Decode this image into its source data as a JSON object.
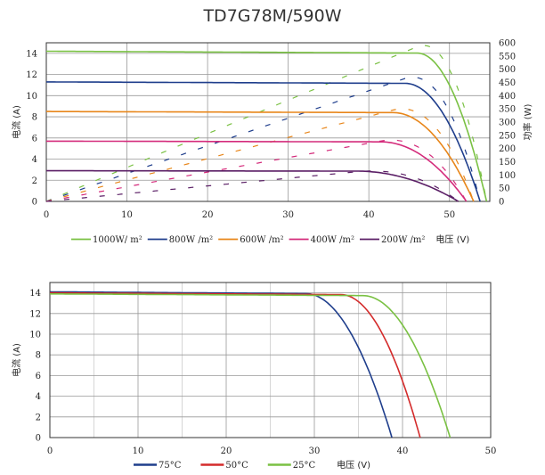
{
  "title": "TD7G78M/590W",
  "chart_data": [
    {
      "type": "line",
      "ylabel": "电流 (A)",
      "y2label": "功率 (W)",
      "xlabel_inline": "电压 (V)",
      "xlim": [
        0,
        55
      ],
      "ylim": [
        0,
        15
      ],
      "y2lim": [
        0,
        600
      ],
      "xticks": [
        0,
        10,
        20,
        30,
        40,
        50
      ],
      "yticks": [
        0,
        2,
        4,
        6,
        8,
        10,
        12,
        14
      ],
      "y2ticks": [
        0,
        50,
        100,
        150,
        200,
        250,
        300,
        350,
        400,
        450,
        500,
        550,
        600
      ],
      "grid": true,
      "legend_position": "bottom",
      "series": [
        {
          "name": "1000W/ m²",
          "color": "#7ac143",
          "isc": 14.2,
          "voc": 54.6,
          "knee": 46.0,
          "pmax": 590
        },
        {
          "name": "800W /m²",
          "color": "#1f3e8c",
          "isc": 11.3,
          "voc": 53.8,
          "knee": 44.5,
          "pmax": 470
        },
        {
          "name": "600W /m²",
          "color": "#e8861a",
          "isc": 8.5,
          "voc": 53.0,
          "knee": 43.0,
          "pmax": 350
        },
        {
          "name": "400W /m²",
          "color": "#d42b7b",
          "isc": 5.7,
          "voc": 52.1,
          "knee": 41.5,
          "pmax": 232
        },
        {
          "name": "200W /m²",
          "color": "#5b1f66",
          "isc": 2.9,
          "voc": 51.1,
          "knee": 38.5,
          "pmax": 115
        }
      ]
    },
    {
      "type": "line",
      "ylabel": "电流 (A)",
      "xlabel_inline": "电压 (V)",
      "xlim": [
        0,
        50
      ],
      "ylim": [
        0,
        15
      ],
      "xticks": [
        0,
        10,
        20,
        30,
        40,
        50
      ],
      "yticks": [
        0,
        2,
        4,
        6,
        8,
        10,
        12,
        14
      ],
      "grid": true,
      "legend_position": "bottom",
      "series": [
        {
          "name": "75°C",
          "color": "#1f3e8c",
          "isc": 14.1,
          "voc": 38.8,
          "knee": 29.0
        },
        {
          "name": "50°C",
          "color": "#d42b2b",
          "isc": 14.0,
          "voc": 42.0,
          "knee": 33.0
        },
        {
          "name": "25°C",
          "color": "#7ac143",
          "isc": 13.9,
          "voc": 45.4,
          "knee": 35.5
        }
      ]
    }
  ]
}
